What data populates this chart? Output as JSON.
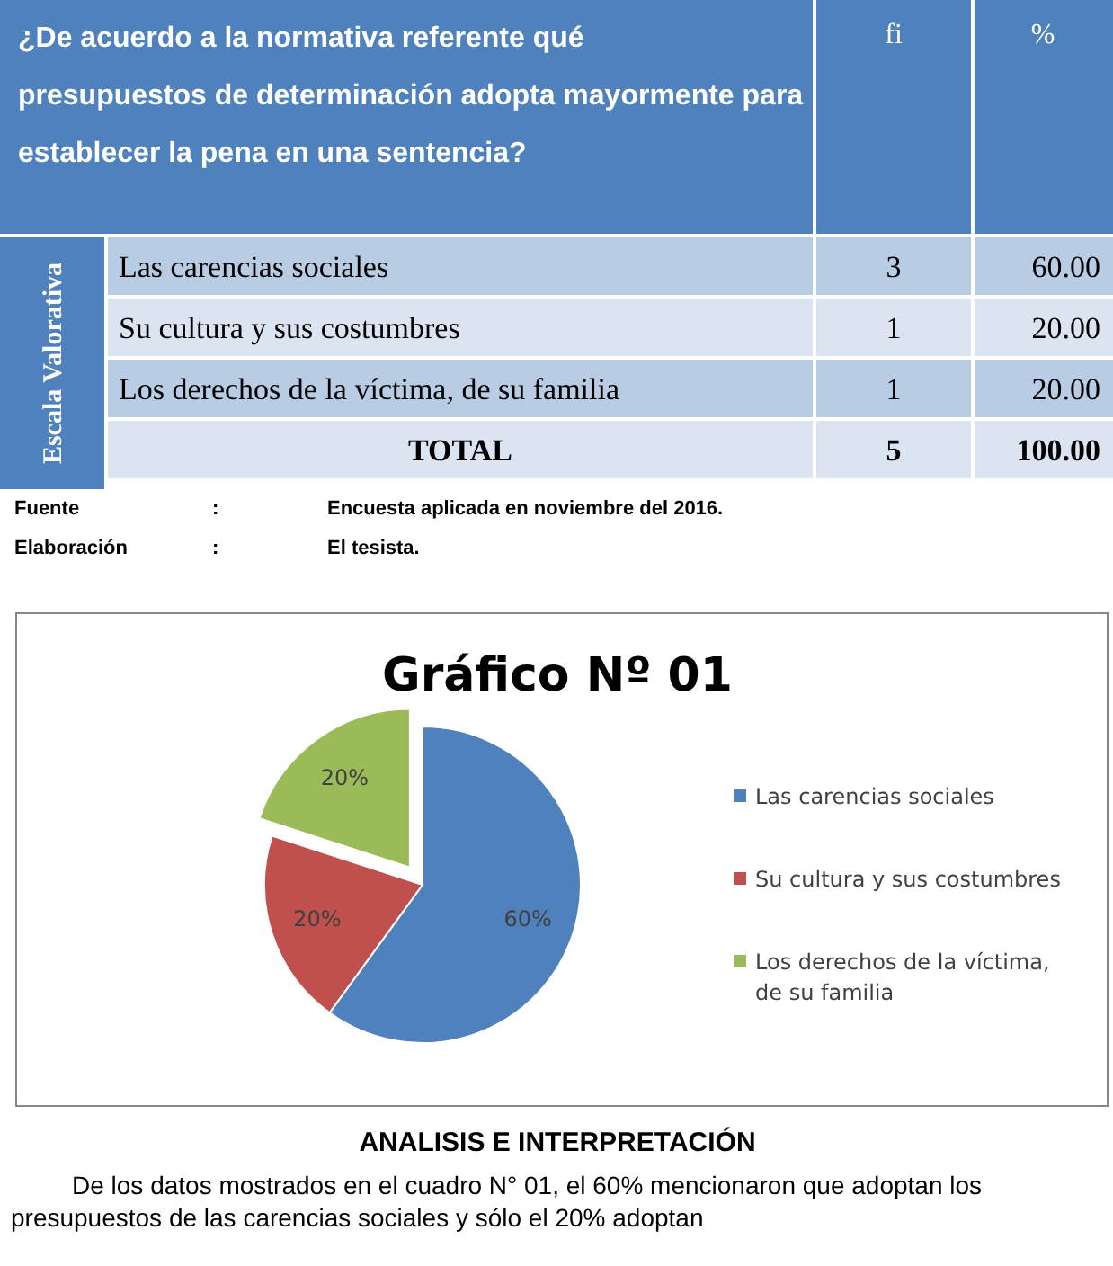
{
  "chart_data": [
    {
      "type": "other",
      "title": "¿De acuerdo a la normativa referente qué presupuestos de determinación adopta mayormente para establecer la pena en una sentencia?",
      "ylabel": "Escala Valorativa",
      "annotations": [
        "fi",
        "%",
        "Las carencias sociales",
        "3",
        "60.00",
        "Su cultura y sus costumbres",
        "1",
        "20.00",
        "Los derechos de la víctima, de su familia",
        "1",
        "20.00",
        "TOTAL",
        "5",
        "100.00",
        "Fuente",
        ":",
        "Encuesta aplicada en noviembre del 2016.",
        "Elaboración",
        ":",
        "El tesista."
      ]
    },
    {
      "type": "pie",
      "title": "Gráfico Nº 01",
      "categories": [
        "Las carencias sociales",
        "Su cultura y sus costumbres",
        "Los derechos de la víctima, de su familia"
      ],
      "values": [
        60,
        20,
        20
      ],
      "value_labels": [
        "60%",
        "20%",
        "20%"
      ],
      "colors": [
        "#4f81bd",
        "#c0504d",
        "#9bbb59"
      ],
      "legend": "right",
      "annotations": [
        "ANALISIS E INTERPRETACIÓN",
        "De los datos mostrados en el cuadro N° 01, el 60% mencionaron que adoptan los presupuestos de las carencias sociales y sólo el 20% adoptan"
      ]
    }
  ]
}
